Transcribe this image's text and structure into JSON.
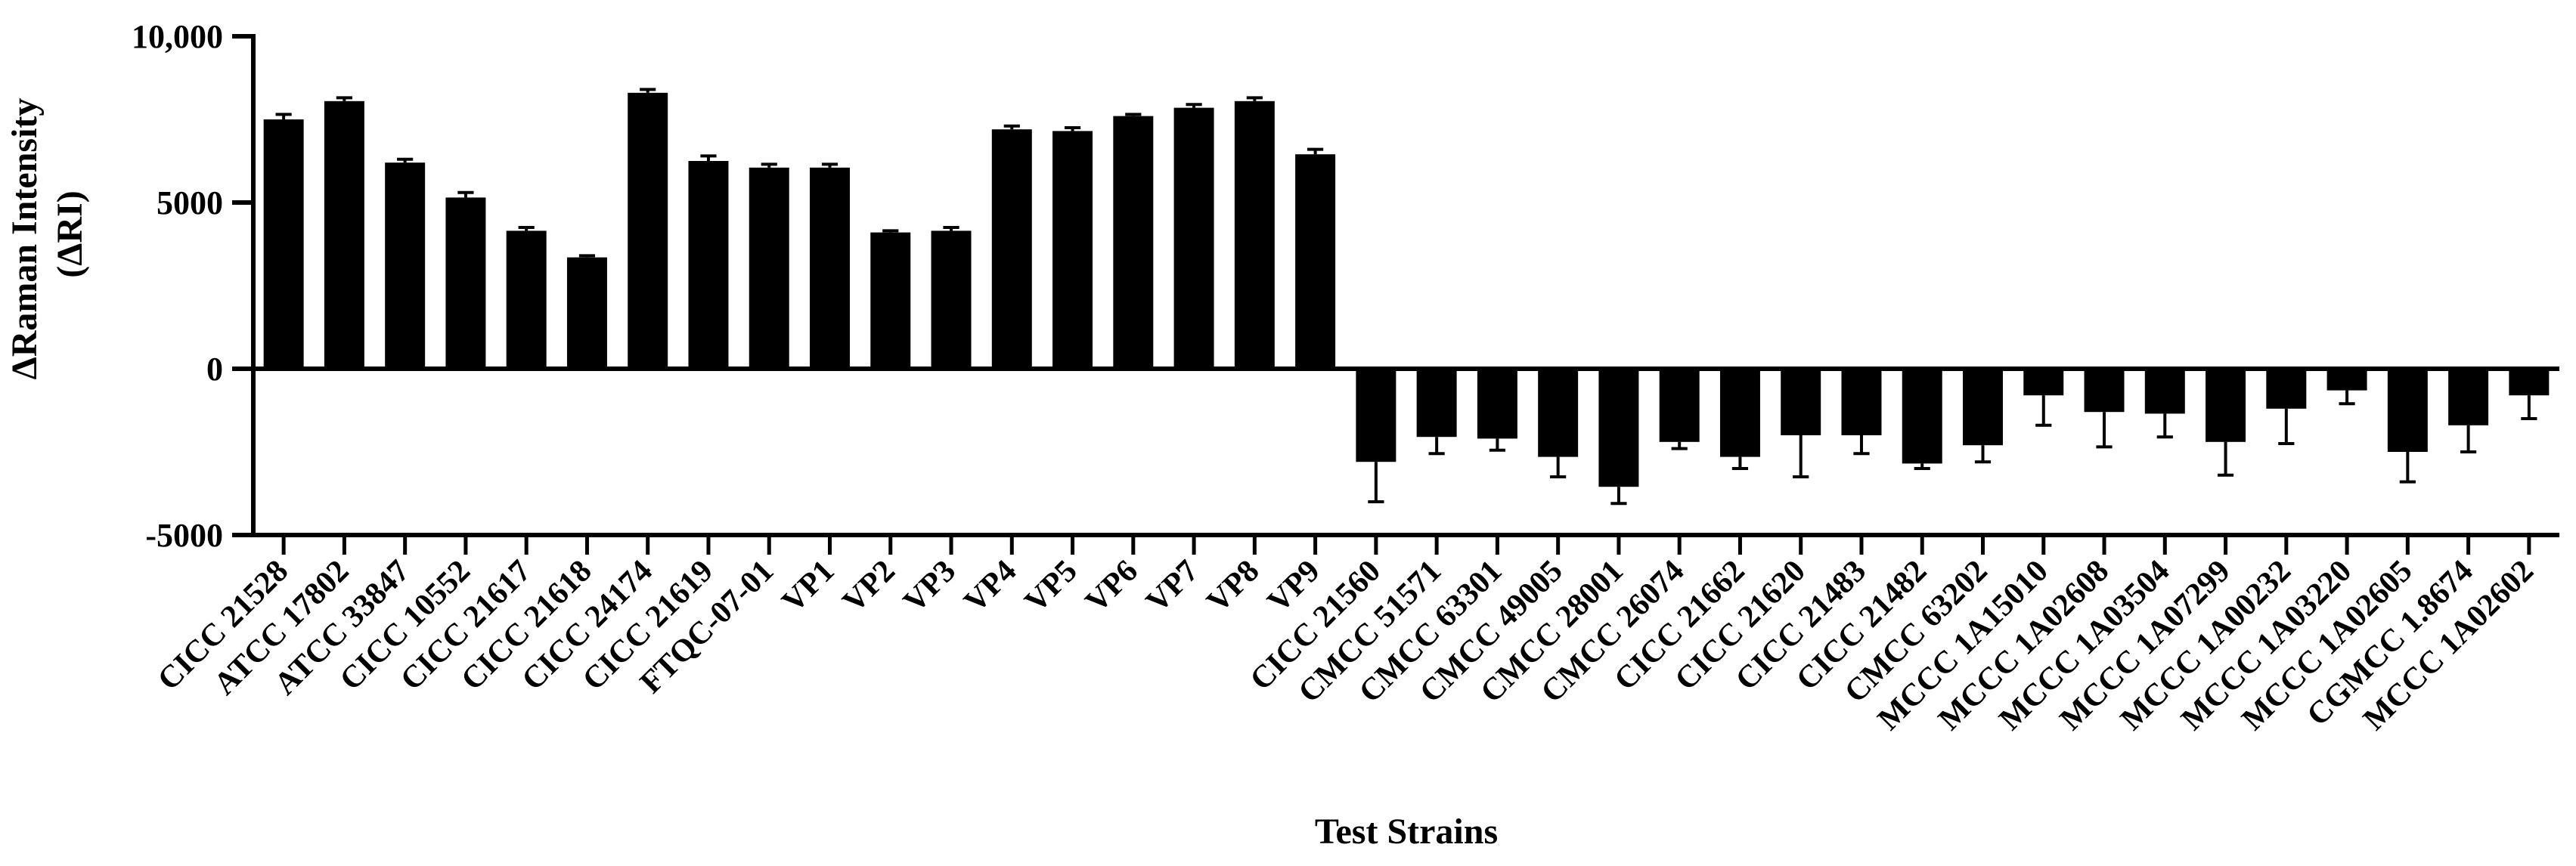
{
  "chart_data": {
    "type": "bar",
    "title": "",
    "xlabel": "Test Strains",
    "ylabel_lines": [
      "ΔRaman Intensity",
      "(ΔRI)"
    ],
    "ylim": [
      -5000,
      10000
    ],
    "yticks": [
      {
        "value": 10000,
        "label": "10,000"
      },
      {
        "value": 5000,
        "label": "5000"
      },
      {
        "value": 0,
        "label": "0"
      },
      {
        "value": -5000,
        "label": "-5000"
      }
    ],
    "bar_color": "#000000",
    "categories": [
      "CICC 21528",
      "ATCC 17802",
      "ATCC 33847",
      "CICC 10552",
      "CICC 21617",
      "CICC 21618",
      "CICC 24174",
      "CICC 21619",
      "FTQC-07-01",
      "VP1",
      "VP2",
      "VP3",
      "VP4",
      "VP5",
      "VP6",
      "VP7",
      "VP8",
      "VP9",
      "CICC 21560",
      "CMCC 51571",
      "CMCC 63301",
      "CMCC 49005",
      "CMCC 28001",
      "CMCC 26074",
      "CICC 21662",
      "CICC 21620",
      "CICC 21483",
      "CICC 21482",
      "CMCC 63202",
      "MCCC 1A15010",
      "MCCC 1A02608",
      "MCCC 1A03504",
      "MCCC 1A07299",
      "MCCC 1A00232",
      "MCCC 1A03220",
      "MCCC 1A02605",
      "CGMCC 1.8674",
      "MCCC 1A02602"
    ],
    "values": [
      7500,
      8050,
      6200,
      5150,
      4150,
      3350,
      8300,
      6250,
      6050,
      6050,
      4100,
      4150,
      7200,
      7150,
      7600,
      7850,
      8050,
      6450,
      -2800,
      -2050,
      -2100,
      -2650,
      -3550,
      -2200,
      -2650,
      -2000,
      -2000,
      -2850,
      -2300,
      -800,
      -1300,
      -1350,
      -2200,
      -1200,
      -650,
      -2500,
      -1700,
      -800
    ],
    "errors": [
      150,
      100,
      100,
      150,
      100,
      50,
      100,
      150,
      100,
      100,
      50,
      100,
      100,
      100,
      50,
      100,
      100,
      150,
      1200,
      500,
      350,
      600,
      500,
      200,
      350,
      1250,
      550,
      150,
      500,
      900,
      1050,
      700,
      1000,
      1050,
      400,
      900,
      800,
      700
    ]
  }
}
